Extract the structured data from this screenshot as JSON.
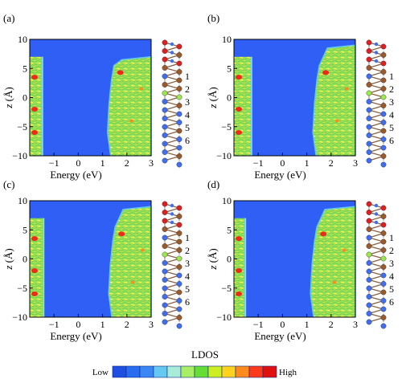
{
  "figure": {
    "panels": [
      {
        "label": "(a)",
        "gap_start": -1.45,
        "gap_end": 1.2,
        "layers": [
          "1",
          "2",
          "3",
          "4",
          "5",
          "6"
        ]
      },
      {
        "label": "(b)",
        "gap_start": -1.25,
        "gap_end": 1.25,
        "layers": [
          "1",
          "2",
          "3",
          "4",
          "5",
          "6"
        ]
      },
      {
        "label": "(c)",
        "gap_start": -1.4,
        "gap_end": 1.25,
        "layers": [
          "1",
          "2",
          "3",
          "4",
          "5",
          "6"
        ]
      },
      {
        "label": "(d)",
        "gap_start": -1.5,
        "gap_end": 1.15,
        "layers": [
          "1",
          "2",
          "3",
          "4",
          "5",
          "6"
        ]
      }
    ],
    "xlabel": "Energy (eV)",
    "ylabel_italic": "z",
    "ylabel_unit": "(Å)",
    "x_ticks": [
      "-1",
      "0",
      "1",
      "2",
      "3"
    ],
    "y_ticks": [
      "10",
      "5",
      "0",
      "-5",
      "-10"
    ],
    "x_range": [
      -2,
      3
    ],
    "y_range": [
      -10,
      10
    ],
    "colorbar": {
      "title": "LDOS",
      "low_label": "Low",
      "high_label": "High",
      "colors": [
        "#1f4fe0",
        "#2a6cf0",
        "#3a86f5",
        "#64c8f0",
        "#a8ecd8",
        "#aaee66",
        "#66dd33",
        "#ccee22",
        "#ffd21e",
        "#ff8a1e",
        "#ff3a1a",
        "#e01010"
      ]
    },
    "colors": {
      "gap_blue": "#2f5ff5",
      "state_green": "#8fe35a",
      "state_yellow": "#f2f04a",
      "hot_red": "#ef2a1a",
      "atom_blue": "#3f6ff0",
      "atom_brown": "#9a5a2a",
      "atom_red": "#e02020",
      "atom_green": "#9be84a"
    }
  }
}
